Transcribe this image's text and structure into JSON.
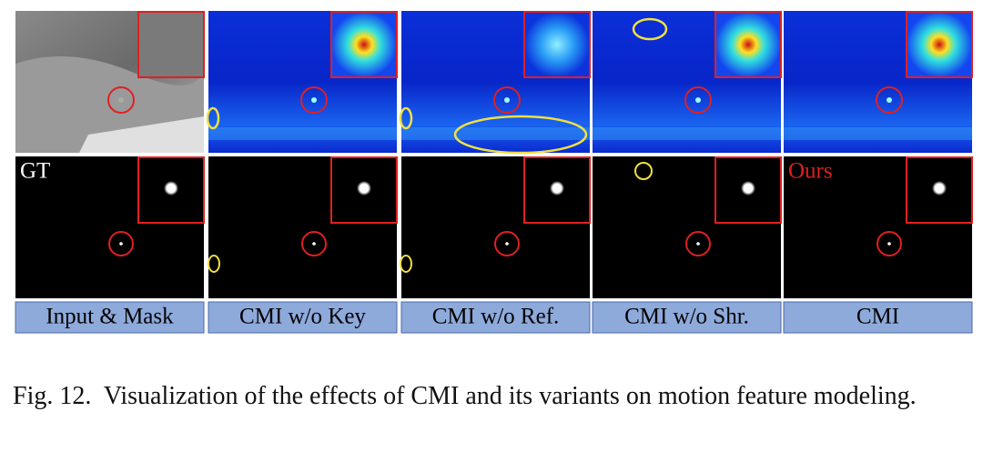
{
  "header": {
    "overlay_labels": {
      "gt": "GT",
      "ours": "Ours"
    }
  },
  "columns": [
    "Input & Mask",
    "CMI w/o Key",
    "CMI w/o Ref.",
    "CMI w/o Shr.",
    "CMI"
  ],
  "caption": "Fig. 12.  Visualization of the effects of CMI and its variants on motion feature modeling."
}
